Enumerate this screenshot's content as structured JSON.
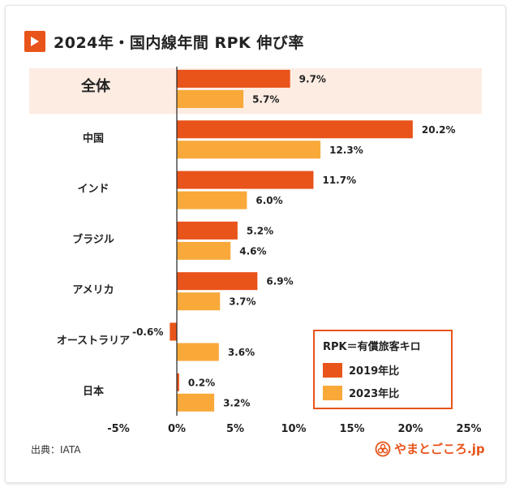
{
  "title": "2024年・国内線年間 RPK 伸び率",
  "source": "出典：IATA",
  "brand": {
    "name": "やまとごころ.jp",
    "icon": "yamatogokoro-logo-icon"
  },
  "colors": {
    "series2019": "#e8541a",
    "series2023": "#f8a93a",
    "highlight": "#fdece2",
    "accent": "#e8541a"
  },
  "chart_data": {
    "type": "bar",
    "orientation": "horizontal",
    "categories": [
      "全体",
      "中国",
      "インド",
      "ブラジル",
      "アメリカ",
      "オーストラリア",
      "日本"
    ],
    "highlight_category": "全体",
    "series": [
      {
        "name": "2019年比",
        "values": [
          9.7,
          20.2,
          11.7,
          5.2,
          6.9,
          -0.6,
          0.2
        ],
        "labels": [
          "9.7%",
          "20.2%",
          "11.7%",
          "5.2%",
          "6.9%",
          "-0.6%",
          "0.2%"
        ]
      },
      {
        "name": "2023年比",
        "values": [
          5.7,
          12.3,
          6.0,
          4.6,
          3.7,
          3.6,
          3.2
        ],
        "labels": [
          "5.7%",
          "12.3%",
          "6.0%",
          "4.6%",
          "3.7%",
          "3.6%",
          "3.2%"
        ]
      }
    ],
    "xlim": [
      -5,
      25
    ],
    "xticks": [
      -5,
      0,
      5,
      10,
      15,
      20,
      25
    ],
    "xtick_labels": [
      "-5%",
      "0%",
      "5%",
      "10%",
      "15%",
      "20%",
      "25%"
    ],
    "legend": {
      "title": "RPK＝有償旅客キロ",
      "position": "bottom-right"
    },
    "grid": false
  }
}
